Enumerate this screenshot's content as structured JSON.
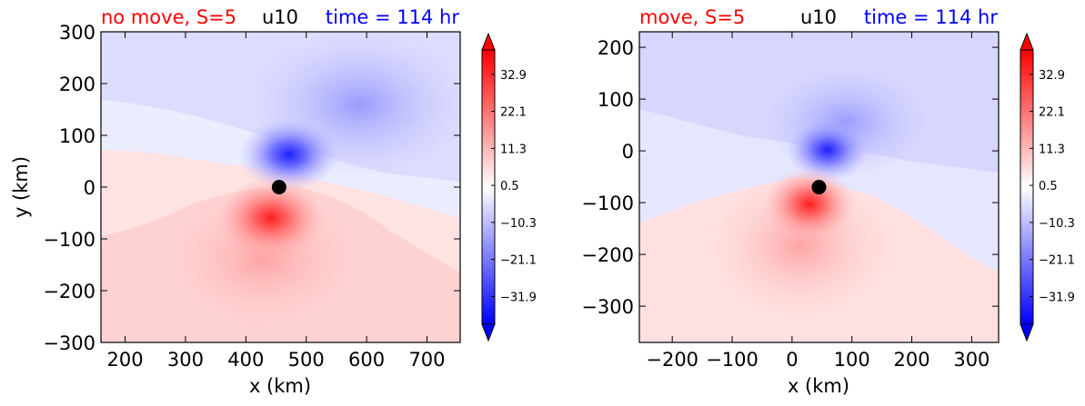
{
  "chart_data": [
    {
      "type": "heatmap",
      "title_left": "no move, S=5",
      "title_center": "u10",
      "title_right": "time = 114 hr",
      "xlabel": "x (km)",
      "ylabel": "y (km)",
      "xlim": [
        160,
        755
      ],
      "ylim": [
        -300,
        300
      ],
      "xticks": [
        200,
        300,
        400,
        500,
        600,
        700
      ],
      "yticks": [
        -300,
        -200,
        -100,
        0,
        100,
        200,
        300
      ],
      "center_marker": {
        "x": 455,
        "y": 0,
        "color": "#000000"
      },
      "colorbar": {
        "ticks": [
          "32.9",
          "22.1",
          "11.3",
          "0.5",
          "−10.3",
          "−21.1",
          "−31.9"
        ],
        "range": [
          -40,
          40
        ],
        "colormap": "bwr"
      }
    },
    {
      "type": "heatmap",
      "title_left": "move, S=5",
      "title_center": "u10",
      "title_right": "time = 114 hr",
      "xlabel": "x (km)",
      "ylabel": "",
      "xlim": [
        -255,
        345
      ],
      "ylim": [
        -370,
        230
      ],
      "xticks": [
        -200,
        -100,
        0,
        100,
        200,
        300
      ],
      "yticks": [
        -300,
        -200,
        -100,
        0,
        100,
        200
      ],
      "center_marker": {
        "x": 45,
        "y": -70,
        "color": "#000000"
      },
      "colorbar": {
        "ticks": [
          "32.9",
          "22.1",
          "11.3",
          "0.5",
          "−10.3",
          "−21.1",
          "−31.9"
        ],
        "range": [
          -40,
          40
        ],
        "colormap": "bwr"
      }
    }
  ],
  "colors": {
    "title_left": "#ff0000",
    "title_center": "#000000",
    "title_right": "#0000ff",
    "positive": "#ff0000",
    "negative": "#0000ff"
  }
}
